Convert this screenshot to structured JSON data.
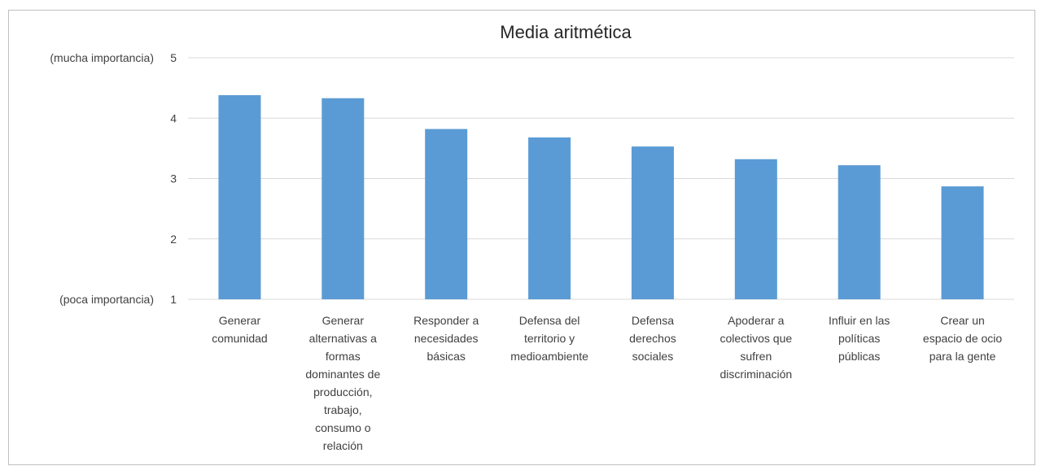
{
  "chart_data": {
    "type": "bar",
    "title": "Media aritmética",
    "categories": [
      [
        "Generar",
        "comunidad"
      ],
      [
        "Generar",
        "alternativas a",
        "formas",
        "dominantes de",
        "producción,",
        "trabajo,",
        "consumo o",
        "relación"
      ],
      [
        "Responder a",
        "necesidades",
        "básicas"
      ],
      [
        "Defensa del",
        "territorio y",
        "medioambiente"
      ],
      [
        "Defensa",
        "derechos",
        "sociales"
      ],
      [
        "Apoderar a",
        "colectivos que",
        "sufren",
        "discriminación"
      ],
      [
        "Influir en las",
        "políticas",
        "públicas"
      ],
      [
        "Crear un",
        "espacio de ocio",
        "para la gente"
      ]
    ],
    "values": [
      4.38,
      4.33,
      3.82,
      3.68,
      3.53,
      3.32,
      3.22,
      2.87
    ],
    "ylim": [
      1,
      5
    ],
    "yticks": [
      1,
      2,
      3,
      4,
      5
    ],
    "ytick_annotations": {
      "top": "(mucha importancia)",
      "bottom": "(poca importancia)"
    },
    "xlabel": "",
    "ylabel": "",
    "grid": true,
    "legend": "none",
    "colors": {
      "bar": "#5b9bd5",
      "grid": "#d9d9d9",
      "text": "#404040"
    }
  }
}
